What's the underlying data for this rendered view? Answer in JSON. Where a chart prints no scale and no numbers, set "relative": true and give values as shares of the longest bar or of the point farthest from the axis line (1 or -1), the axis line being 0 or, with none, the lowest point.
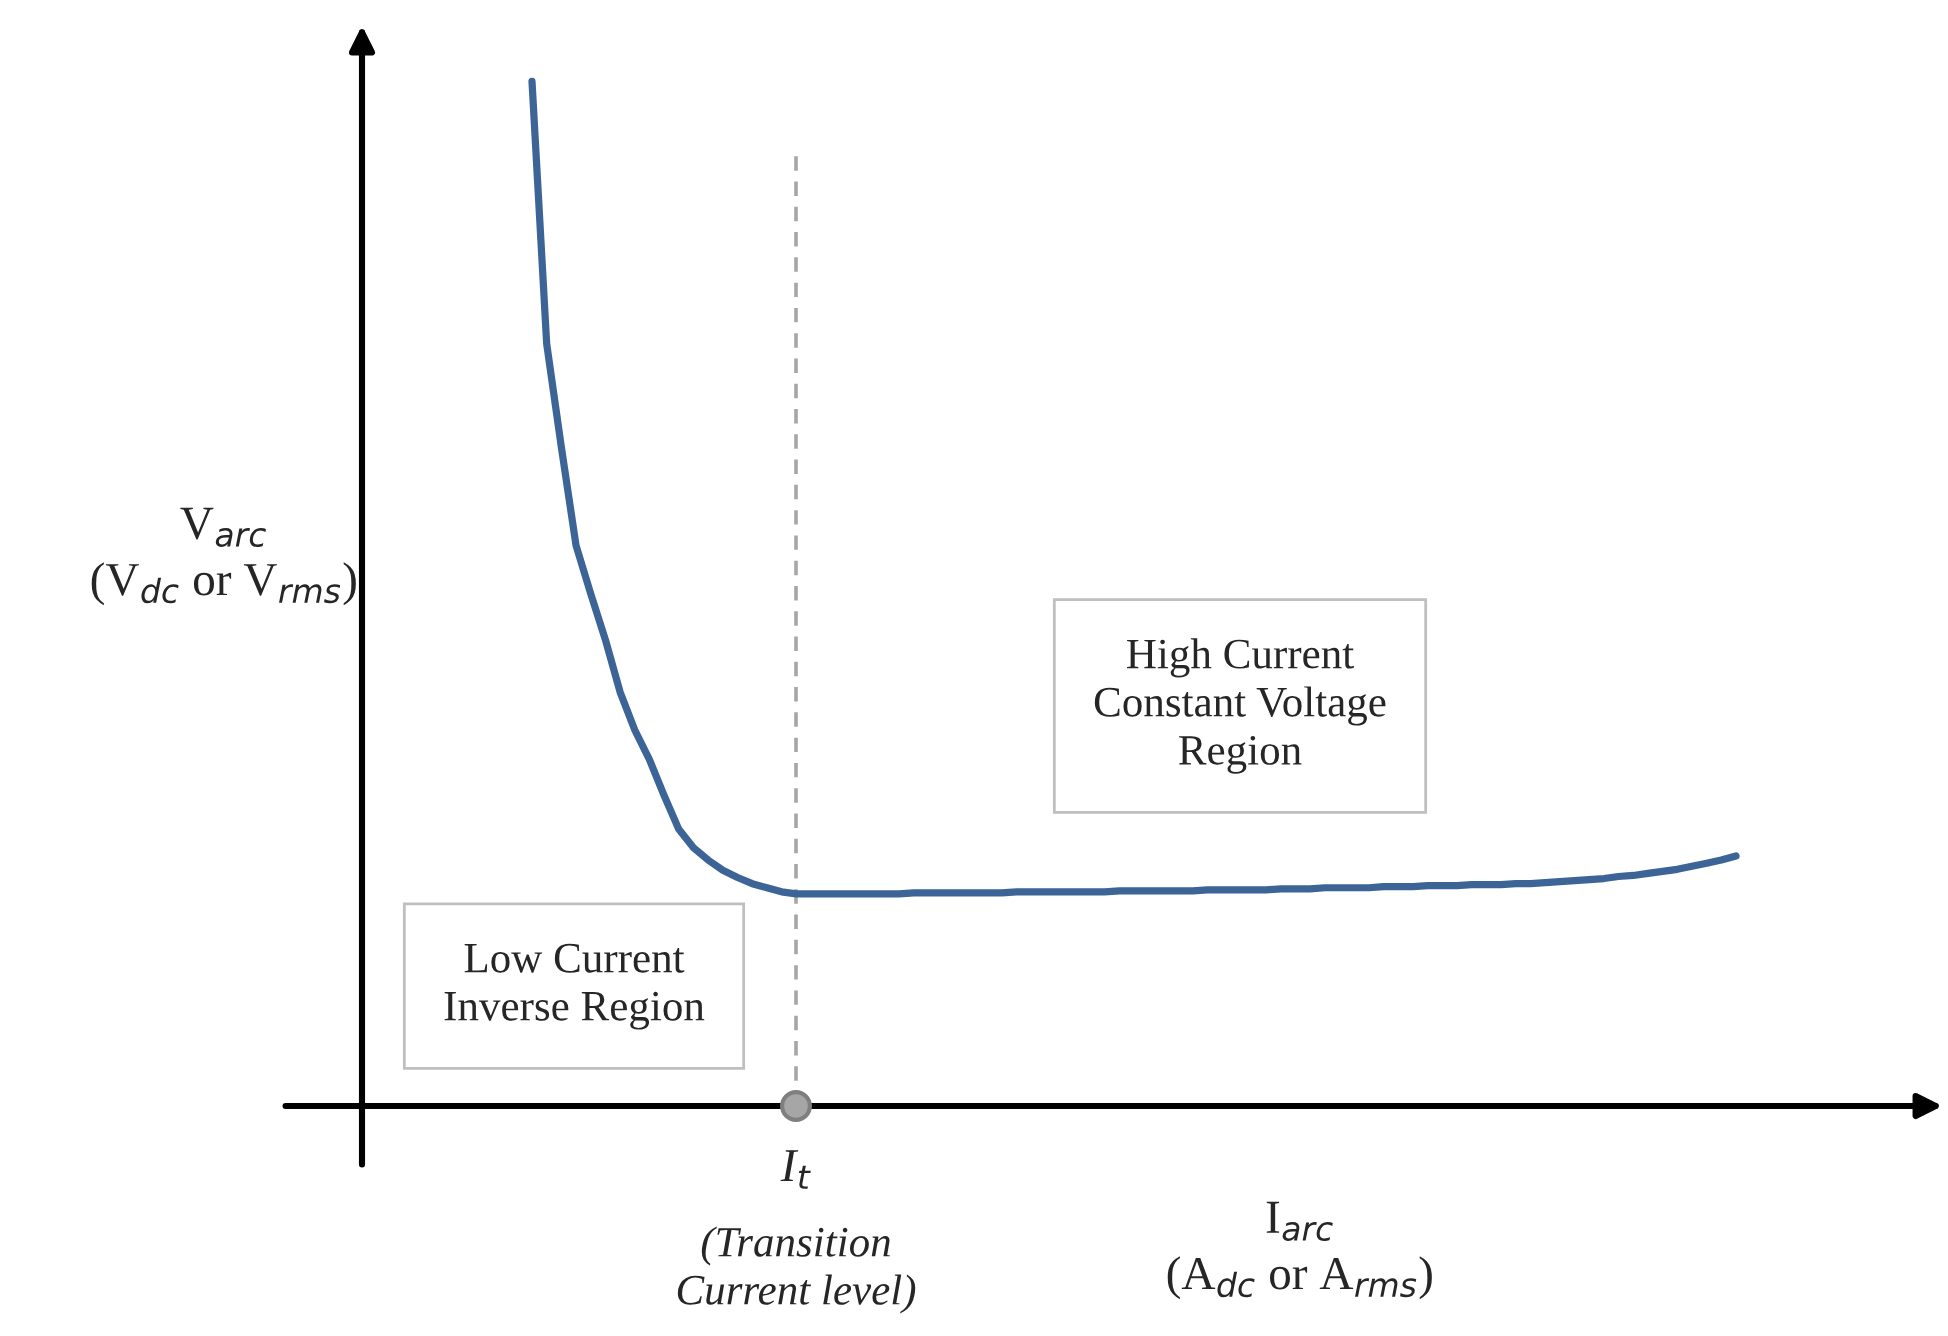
{
  "chart_data": {
    "type": "line",
    "relative": true,
    "xlabel": "I$_{arc}$\n(A$_{dc}$ or A$_{rms}$)",
    "ylabel": "V$_{arc}$\n(V$_{dc}$ or V$_{rms}$)",
    "categories": [
      null,
      null,
      null,
      null,
      null,
      null,
      null,
      null,
      null,
      null,
      null,
      null,
      null,
      null,
      null,
      null,
      null,
      null,
      null,
      null,
      null,
      null,
      null,
      null,
      null,
      null,
      null,
      null,
      null,
      null,
      null,
      null,
      null,
      null,
      null,
      null,
      null,
      null,
      null,
      null,
      null,
      null,
      null,
      null,
      null,
      null,
      null,
      null,
      null,
      null,
      null,
      null,
      null,
      null,
      null,
      null,
      null,
      null,
      null,
      null,
      null,
      null,
      null,
      null,
      null,
      null,
      null,
      null,
      null,
      null,
      null,
      null,
      null,
      null,
      null,
      null,
      null,
      null,
      null,
      null,
      null,
      null,
      null
    ],
    "series": [
      {
        "color": "#3d6497",
        "values": [
          1.0,
          0.744,
          0.643,
          0.547,
          0.5,
          0.455,
          0.404,
          0.367,
          0.338,
          0.303,
          0.27,
          0.252,
          0.24,
          0.23,
          0.223,
          0.217,
          0.213,
          0.209,
          0.207,
          0.207,
          0.207,
          0.207,
          0.207,
          0.207,
          0.207,
          0.207,
          0.208,
          0.208,
          0.208,
          0.208,
          0.208,
          0.208,
          0.208,
          0.209,
          0.209,
          0.209,
          0.209,
          0.209,
          0.209,
          0.209,
          0.21,
          0.21,
          0.21,
          0.21,
          0.21,
          0.21,
          0.211,
          0.211,
          0.211,
          0.211,
          0.211,
          0.212,
          0.212,
          0.212,
          0.213,
          0.213,
          0.213,
          0.213,
          0.214,
          0.214,
          0.214,
          0.215,
          0.215,
          0.215,
          0.216,
          0.216,
          0.216,
          0.217,
          0.217,
          0.218,
          0.219,
          0.22,
          0.221,
          0.222,
          0.224,
          0.225,
          0.227,
          0.229,
          0.231,
          0.234,
          0.237,
          0.24,
          0.244
        ]
      }
    ],
    "annotations": [
      "Low Current\nInverse Region",
      "High Current\nConstant Voltage\nRegion",
      "I$_{t}$",
      "(Transition\nCurrent level)"
    ]
  }
}
